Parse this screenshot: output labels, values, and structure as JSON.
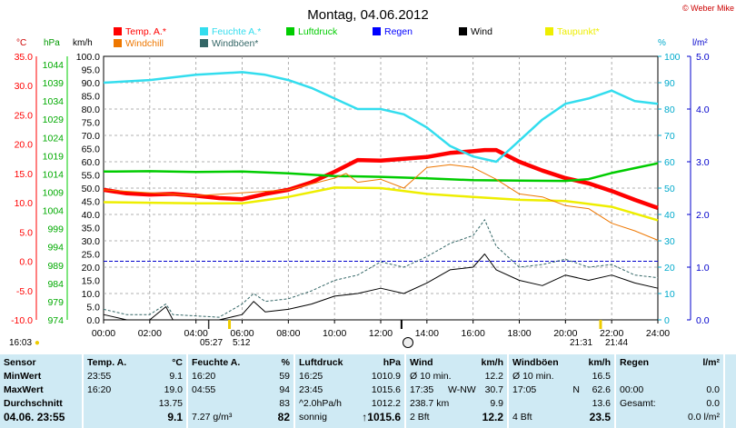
{
  "header": {
    "title": "Montag, 04.06.2012",
    "copyright": "© Weber Mike"
  },
  "axes": {
    "temp_unit": "°C",
    "pressure_unit": "hPa",
    "wind_unit": "km/h",
    "humidity_unit": "%",
    "rain_unit": "l/m²",
    "temp_ticks": [
      "35.0",
      "30.0",
      "25.0",
      "20.0",
      "15.0",
      "10.0",
      "5.0",
      "0.0",
      "-5.0",
      "-10.0"
    ],
    "pressure_ticks": [
      "1044",
      "1039",
      "1034",
      "1029",
      "1024",
      "1019",
      "1014",
      "1009",
      "1004",
      "999",
      "994",
      "989",
      "984",
      "979",
      "974"
    ],
    "wind_ticks": [
      "100.0",
      "95.0",
      "90.0",
      "85.0",
      "80.0",
      "75.0",
      "70.0",
      "65.0",
      "60.0",
      "55.0",
      "50.0",
      "45.0",
      "40.0",
      "35.0",
      "30.0",
      "25.0",
      "20.0",
      "15.0",
      "10.0",
      "5.0",
      "0.0"
    ],
    "humidity_ticks": [
      "100",
      "90",
      "80",
      "70",
      "60",
      "50",
      "40",
      "30",
      "20",
      "10",
      "0"
    ],
    "rain_ticks": [
      "5.0",
      "4.0",
      "3.0",
      "2.0",
      "1.0",
      "0.0"
    ],
    "time_ticks": [
      "00:00",
      "02:00",
      "04:00",
      "06:00",
      "08:00",
      "10:00",
      "12:00",
      "14:00",
      "16:00",
      "18:00",
      "20:00",
      "22:00",
      "24:00"
    ]
  },
  "legend": [
    {
      "label": "Temp. A.*",
      "color": "#ff0000"
    },
    {
      "label": "Feuchte A.*",
      "color": "#33ddee"
    },
    {
      "label": "Luftdruck",
      "color": "#00cc00"
    },
    {
      "label": "Regen",
      "color": "#0000ff"
    },
    {
      "label": "Wind",
      "color": "#000000"
    },
    {
      "label": "Taupunkt*",
      "color": "#eeee00"
    },
    {
      "label": "Windchill",
      "color": "#ee7700"
    },
    {
      "label": "Windböen*",
      "color": "#336666"
    }
  ],
  "sun": {
    "left_time": "16:03",
    "sunrise": "05:27",
    "sunrise_end": "5:12",
    "sunset": "21:31",
    "sunset_end": "21:44"
  },
  "chart_data": {
    "type": "line",
    "x_label": "",
    "x_range_hours": [
      0,
      24
    ],
    "temp_range_c": [
      -10,
      35
    ],
    "pressure_range_hpa": [
      974,
      1044
    ],
    "wind_range_kmh": [
      0,
      100
    ],
    "humidity_range_pct": [
      0,
      100
    ],
    "rain_range_lm2": [
      0,
      5
    ],
    "grid": true,
    "series": [
      {
        "name": "Temp. A.*",
        "axis": "temp",
        "color": "#ff0000",
        "points": [
          [
            0,
            12.2
          ],
          [
            1,
            11.6
          ],
          [
            2,
            11.4
          ],
          [
            3,
            11.5
          ],
          [
            4,
            11.2
          ],
          [
            5,
            10.8
          ],
          [
            6,
            10.6
          ],
          [
            7,
            11.5
          ],
          [
            8,
            12.2
          ],
          [
            9,
            13.5
          ],
          [
            10,
            15.3
          ],
          [
            11,
            17.3
          ],
          [
            12,
            17.2
          ],
          [
            13,
            17.5
          ],
          [
            14,
            17.8
          ],
          [
            15,
            18.5
          ],
          [
            16,
            18.8
          ],
          [
            16.5,
            19.0
          ],
          [
            17,
            19.0
          ],
          [
            18,
            17.0
          ],
          [
            19,
            15.5
          ],
          [
            20,
            14.2
          ],
          [
            21,
            13.3
          ],
          [
            22,
            12.0
          ],
          [
            23,
            10.5
          ],
          [
            24,
            9.1
          ]
        ]
      },
      {
        "name": "Feuchte A.*",
        "axis": "humidity",
        "color": "#33ddee",
        "points": [
          [
            0,
            90
          ],
          [
            2,
            91
          ],
          [
            4,
            93
          ],
          [
            6,
            94
          ],
          [
            7,
            93
          ],
          [
            8,
            91
          ],
          [
            9,
            88
          ],
          [
            10,
            84
          ],
          [
            11,
            80
          ],
          [
            12,
            80
          ],
          [
            13,
            78
          ],
          [
            14,
            73
          ],
          [
            15,
            66
          ],
          [
            16,
            62
          ],
          [
            16.5,
            61
          ],
          [
            17,
            60
          ],
          [
            18,
            68
          ],
          [
            19,
            76
          ],
          [
            20,
            82
          ],
          [
            21,
            84
          ],
          [
            22,
            87
          ],
          [
            23,
            83
          ],
          [
            24,
            82
          ]
        ]
      },
      {
        "name": "Luftdruck",
        "axis": "pressure",
        "color": "#00cc00",
        "points": [
          [
            0,
            1013.4
          ],
          [
            2,
            1013.5
          ],
          [
            4,
            1013.3
          ],
          [
            6,
            1013.4
          ],
          [
            8,
            1012.9
          ],
          [
            10,
            1012.2
          ],
          [
            12,
            1012.0
          ],
          [
            14,
            1011.6
          ],
          [
            16,
            1011.1
          ],
          [
            18,
            1011.0
          ],
          [
            20,
            1010.9
          ],
          [
            21,
            1011.4
          ],
          [
            22,
            1013.0
          ],
          [
            23,
            1014.3
          ],
          [
            24,
            1015.6
          ]
        ]
      },
      {
        "name": "Taupunkt*",
        "axis": "temp",
        "color": "#eeee00",
        "points": [
          [
            0,
            10.1
          ],
          [
            2,
            10.0
          ],
          [
            4,
            9.9
          ],
          [
            6,
            9.9
          ],
          [
            8,
            11.0
          ],
          [
            10,
            12.6
          ],
          [
            12,
            12.5
          ],
          [
            14,
            11.5
          ],
          [
            16,
            11.0
          ],
          [
            18,
            10.5
          ],
          [
            20,
            10.3
          ],
          [
            22,
            9.3
          ],
          [
            24,
            7.0
          ]
        ]
      },
      {
        "name": "Windchill",
        "axis": "temp",
        "color": "#ee7700",
        "points": [
          [
            0,
            12.2
          ],
          [
            4,
            11.2
          ],
          [
            8,
            12.2
          ],
          [
            9,
            13.2
          ],
          [
            10,
            14.2
          ],
          [
            10.5,
            15.0
          ],
          [
            11,
            13.5
          ],
          [
            12,
            14.0
          ],
          [
            13,
            12.5
          ],
          [
            14,
            16.0
          ],
          [
            15,
            16.5
          ],
          [
            16,
            16.0
          ],
          [
            17,
            14.0
          ],
          [
            18,
            11.5
          ],
          [
            19,
            11.0
          ],
          [
            20,
            9.5
          ],
          [
            21,
            9.0
          ],
          [
            22,
            6.5
          ],
          [
            23,
            5.2
          ],
          [
            24,
            3.6
          ]
        ]
      },
      {
        "name": "Wind",
        "axis": "wind",
        "color": "#000000",
        "points": [
          [
            0,
            2
          ],
          [
            1,
            0
          ],
          [
            2,
            0
          ],
          [
            2.7,
            5
          ],
          [
            3,
            0
          ],
          [
            5,
            0
          ],
          [
            6,
            2
          ],
          [
            6.5,
            7
          ],
          [
            7,
            3
          ],
          [
            8,
            4
          ],
          [
            9,
            6
          ],
          [
            10,
            9
          ],
          [
            11,
            10
          ],
          [
            12,
            12
          ],
          [
            13,
            10
          ],
          [
            14,
            14
          ],
          [
            15,
            19
          ],
          [
            16,
            20
          ],
          [
            16.5,
            25
          ],
          [
            17,
            19
          ],
          [
            18,
            15
          ],
          [
            19,
            13
          ],
          [
            20,
            17
          ],
          [
            21,
            15
          ],
          [
            22,
            17
          ],
          [
            23,
            14
          ],
          [
            24,
            12
          ]
        ]
      },
      {
        "name": "Windböen*",
        "axis": "wind",
        "color": "#336666",
        "points": [
          [
            0,
            4
          ],
          [
            1,
            2
          ],
          [
            2,
            2
          ],
          [
            2.7,
            6
          ],
          [
            3,
            2
          ],
          [
            5,
            1
          ],
          [
            6,
            6
          ],
          [
            6.5,
            10
          ],
          [
            7,
            7
          ],
          [
            8,
            8
          ],
          [
            9,
            11
          ],
          [
            10,
            15
          ],
          [
            11,
            17
          ],
          [
            12,
            22
          ],
          [
            13,
            20
          ],
          [
            14,
            24
          ],
          [
            15,
            29
          ],
          [
            16,
            32
          ],
          [
            16.5,
            38
          ],
          [
            17,
            28
          ],
          [
            18,
            20
          ],
          [
            19,
            21
          ],
          [
            20,
            23
          ],
          [
            21,
            20
          ],
          [
            22,
            21
          ],
          [
            23,
            17
          ],
          [
            24,
            16
          ]
        ]
      }
    ],
    "rain_values": [
      0,
      0
    ]
  },
  "stats": {
    "labels": {
      "sensor": "Sensor",
      "min": "MinWert",
      "max": "MaxWert",
      "avg": "Durchschnitt",
      "current": "04.06. 23:55"
    },
    "temp": {
      "hdr": "Temp. A.",
      "unit": "°C",
      "min_t": "23:55",
      "min_v": "9.1",
      "max_t": "16:20",
      "max_v": "19.0",
      "avg_v": "13.75",
      "cur_v": "9.1"
    },
    "hum": {
      "hdr": "Feuchte A.",
      "unit": "%",
      "min_t": "16:20",
      "min_v": "59",
      "max_t": "04:55",
      "max_v": "94",
      "avg_v": "83",
      "cur_extra": "7.27 g/m³",
      "cur_v": "82"
    },
    "press": {
      "hdr": "Luftdruck",
      "unit": "hPa",
      "min_t": "16:25",
      "min_v": "1010.9",
      "max_t": "23:45",
      "max_v": "1015.6",
      "avg_t": "^2.0hPa/h",
      "avg_v": "1012.2",
      "cur_t": "sonnig",
      "cur_v": "↑1015.6"
    },
    "wind": {
      "hdr": "Wind",
      "unit": "km/h",
      "r1_t": "Ø 10 min.",
      "r1_v": "12.2",
      "r2_t": "17:35",
      "r2_m": "W-NW",
      "r2_v": "30.7",
      "r3_t": "238.7 km",
      "r3_v": "9.9",
      "r4_t": "2 Bft",
      "r4_v": "12.2"
    },
    "gust": {
      "hdr": "Windböen",
      "unit": "km/h",
      "r1_t": "Ø 10 min.",
      "r1_v": "16.5",
      "r2_t": "17:05",
      "r2_m": "N",
      "r2_v": "62.6",
      "r3_v": "13.6",
      "r4_t": "4 Bft",
      "r4_v": "23.5"
    },
    "rain": {
      "hdr": "Regen",
      "unit": "l/m²",
      "r2_t": "00:00",
      "r2_v": "0.0",
      "r3_t": "Gesamt:",
      "r3_v": "0.0",
      "r4_v": "0.0 l/m²"
    }
  }
}
